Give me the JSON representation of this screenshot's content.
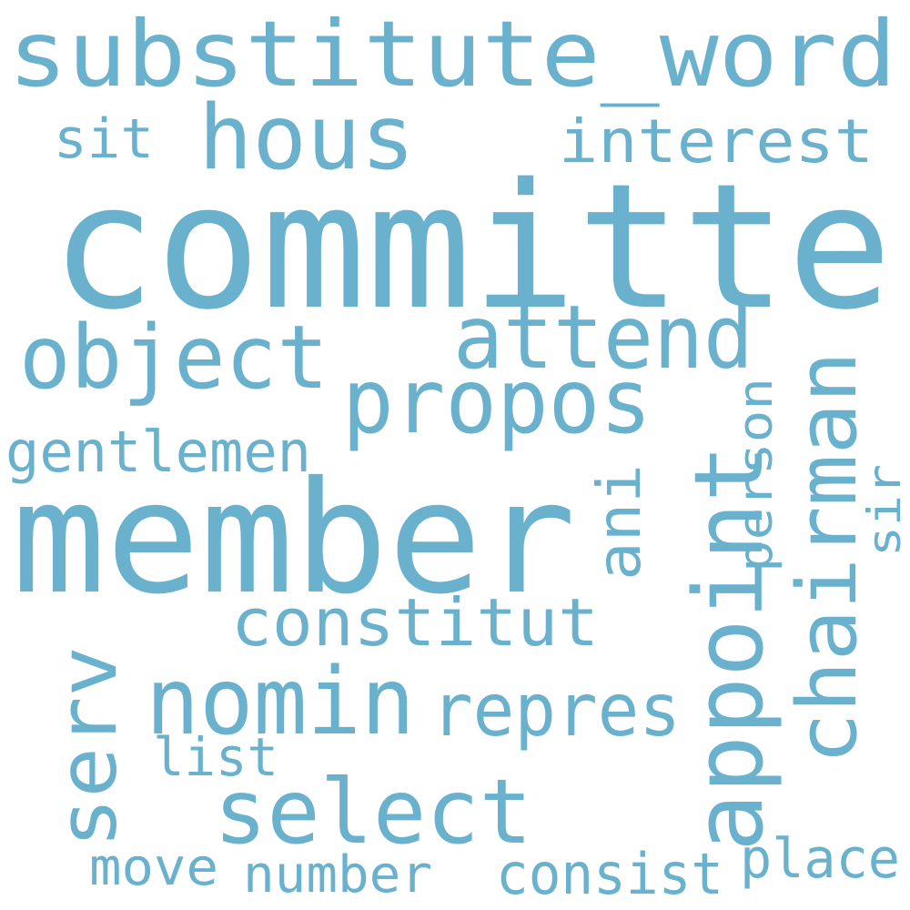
{
  "style": {
    "background": "#ffffff",
    "word_color": "#69b1cd"
  },
  "words": {
    "committe": "committe",
    "member": "member",
    "substitute_word": "substitute_word",
    "hous": "hous",
    "appoint": "appoint",
    "propos": "propos",
    "chairman": "chairman",
    "object": "object",
    "attend": "attend",
    "nomin": "nomin",
    "select": "select",
    "serv": "serv",
    "constitut": "constitut",
    "repres": "repres",
    "interest": "interest",
    "gentlemen": "gentlemen",
    "ani": "ani",
    "person": "person",
    "consist": "consist",
    "place": "place",
    "number": "number",
    "move": "move",
    "list": "list",
    "sit": "sit",
    "sir": "sir"
  }
}
